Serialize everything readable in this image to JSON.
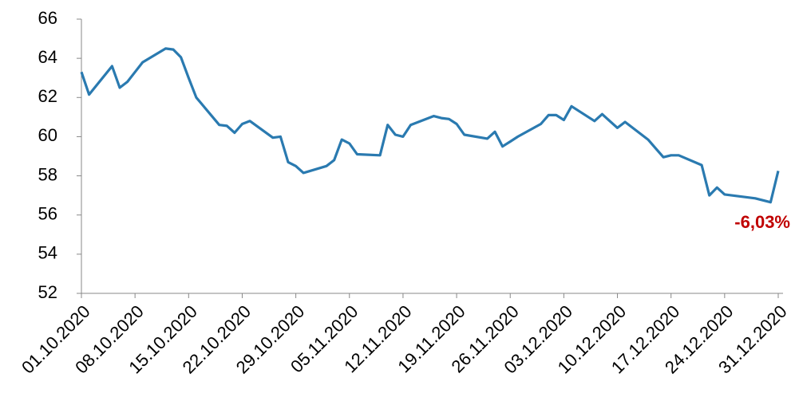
{
  "chart_data": {
    "type": "line",
    "x": [
      "01.10.2020",
      "02.10.2020",
      "05.10.2020",
      "06.10.2020",
      "07.10.2020",
      "08.10.2020",
      "09.10.2020",
      "12.10.2020",
      "13.10.2020",
      "14.10.2020",
      "15.10.2020",
      "16.10.2020",
      "19.10.2020",
      "20.10.2020",
      "21.10.2020",
      "22.10.2020",
      "23.10.2020",
      "26.10.2020",
      "27.10.2020",
      "28.10.2020",
      "29.10.2020",
      "30.10.2020",
      "02.11.2020",
      "03.11.2020",
      "04.11.2020",
      "05.11.2020",
      "06.11.2020",
      "09.11.2020",
      "10.11.2020",
      "11.11.2020",
      "12.11.2020",
      "13.11.2020",
      "16.11.2020",
      "17.11.2020",
      "18.11.2020",
      "19.11.2020",
      "20.11.2020",
      "23.11.2020",
      "24.11.2020",
      "25.11.2020",
      "26.11.2020",
      "27.11.2020",
      "30.11.2020",
      "01.12.2020",
      "02.12.2020",
      "03.12.2020",
      "04.12.2020",
      "07.12.2020",
      "08.12.2020",
      "09.12.2020",
      "10.12.2020",
      "11.12.2020",
      "14.12.2020",
      "15.12.2020",
      "16.12.2020",
      "17.12.2020",
      "18.12.2020",
      "21.12.2020",
      "22.12.2020",
      "23.12.2020",
      "24.12.2020",
      "28.12.2020",
      "30.12.2020",
      "31.12.2020"
    ],
    "values": [
      63.3,
      62.15,
      63.6,
      62.5,
      62.8,
      63.3,
      63.8,
      64.5,
      64.45,
      64.05,
      63.0,
      62.0,
      60.6,
      60.55,
      60.2,
      60.65,
      60.8,
      59.95,
      60.0,
      58.7,
      58.5,
      58.15,
      58.5,
      58.8,
      59.85,
      59.65,
      59.1,
      59.05,
      60.6,
      60.1,
      60.0,
      60.6,
      61.05,
      60.95,
      60.9,
      60.65,
      60.1,
      59.9,
      60.25,
      59.5,
      59.75,
      60.0,
      60.65,
      61.1,
      61.1,
      60.85,
      61.55,
      60.8,
      61.15,
      60.8,
      60.45,
      60.75,
      59.85,
      59.4,
      58.95,
      59.05,
      59.05,
      58.55,
      57.0,
      57.4,
      57.05,
      56.85,
      56.65,
      58.25
    ],
    "color": "#2a7ab0",
    "xlim": [
      "01.10.2020",
      "31.12.2020"
    ],
    "xticks": [
      "01.10.2020",
      "08.10.2020",
      "15.10.2020",
      "22.10.2020",
      "29.10.2020",
      "05.11.2020",
      "12.11.2020",
      "19.11.2020",
      "26.11.2020",
      "03.12.2020",
      "10.12.2020",
      "17.12.2020",
      "24.12.2020",
      "31.12.2020"
    ],
    "ylim": [
      52,
      66
    ],
    "yticks": [
      52,
      54,
      56,
      58,
      60,
      62,
      64,
      66
    ],
    "annotations": [
      {
        "text": "-6,03%",
        "color": "#c00000"
      }
    ]
  }
}
